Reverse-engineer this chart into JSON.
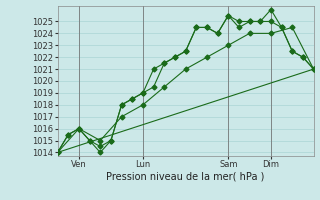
{
  "title": "",
  "xlabel": "Pression niveau de la mer( hPa )",
  "ylabel": "",
  "bg_color": "#cce8e8",
  "grid_color": "#aad4d4",
  "line_color": "#1a6b1a",
  "marker_size": 2.5,
  "xlim": [
    0,
    96
  ],
  "ylim": [
    1014,
    1026
  ],
  "yticks": [
    1014,
    1015,
    1016,
    1017,
    1018,
    1019,
    1020,
    1021,
    1022,
    1023,
    1024,
    1025
  ],
  "xtick_positions": [
    8,
    32,
    64,
    80
  ],
  "xtick_labels": [
    "Ven",
    "Lun",
    "Sam",
    "Dim"
  ],
  "vline_positions": [
    8,
    32,
    64,
    80
  ],
  "series1": {
    "x": [
      0,
      4,
      8,
      12,
      16,
      20,
      24,
      28,
      32,
      36,
      40,
      44,
      48,
      52,
      56,
      60,
      64,
      68,
      72,
      76,
      80,
      84,
      88,
      92,
      96
    ],
    "y": [
      1014,
      1015.5,
      1016,
      1015,
      1014,
      1015,
      1018,
      1018.5,
      1019,
      1021,
      1021.5,
      1022,
      1022.5,
      1024.5,
      1024.5,
      1024,
      1025.5,
      1025,
      1025,
      1025,
      1026,
      1024.5,
      1022.5,
      1022,
      1021
    ]
  },
  "series2": {
    "x": [
      0,
      4,
      8,
      12,
      16,
      20,
      24,
      28,
      32,
      36,
      40,
      44,
      48,
      52,
      56,
      60,
      64,
      68,
      72,
      76,
      80,
      84,
      88,
      92,
      96
    ],
    "y": [
      1014,
      1015.5,
      1016,
      1015,
      1014.5,
      1015,
      1018,
      1018.5,
      1019,
      1019.5,
      1021.5,
      1022,
      1022.5,
      1024.5,
      1024.5,
      1024,
      1025.5,
      1024.5,
      1025,
      1025,
      1025,
      1024.5,
      1022.5,
      1022,
      1021
    ]
  },
  "series3": {
    "x": [
      0,
      8,
      16,
      24,
      32,
      40,
      48,
      56,
      64,
      72,
      80,
      88,
      96
    ],
    "y": [
      1014,
      1016,
      1015,
      1017,
      1018,
      1019.5,
      1021,
      1022,
      1023,
      1024,
      1024,
      1024.5,
      1021
    ]
  },
  "series4": {
    "x": [
      0,
      96
    ],
    "y": [
      1014,
      1021
    ]
  }
}
